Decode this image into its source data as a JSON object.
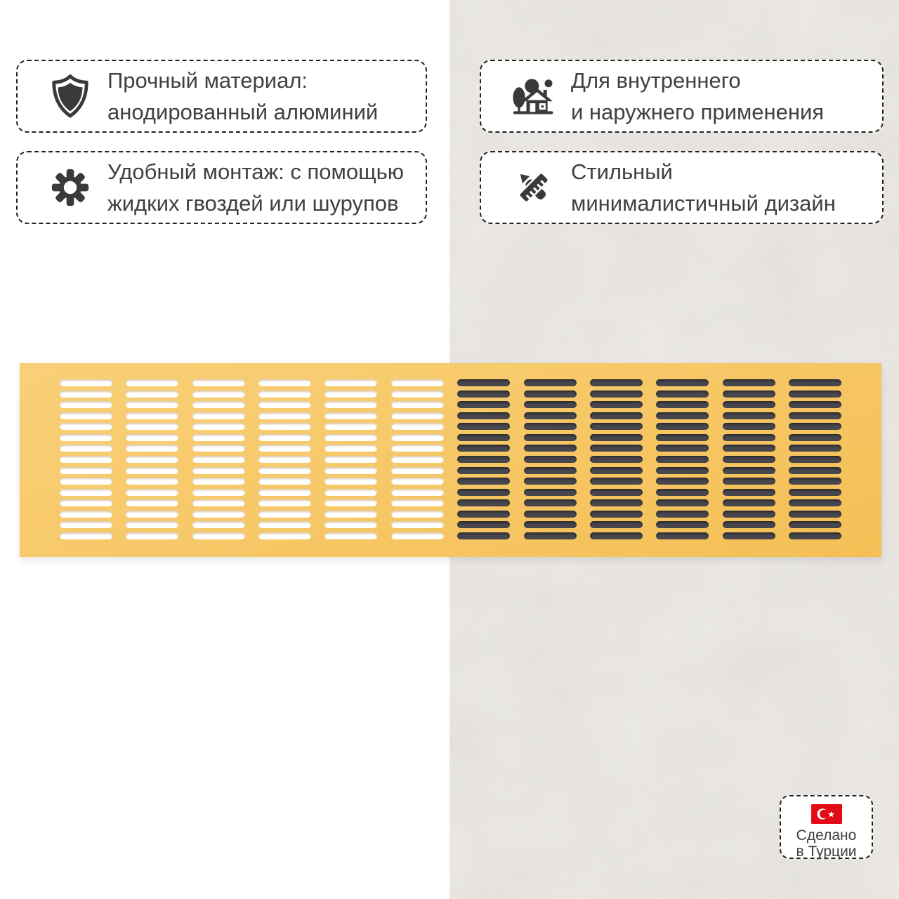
{
  "features": [
    {
      "icon": "shield-icon",
      "lines": [
        "Прочный материал:",
        "анодированный алюминий"
      ]
    },
    {
      "icon": "gear-icon",
      "lines": [
        "Удобный монтаж: с помощью",
        "жидких гвоздей или шурупов"
      ]
    },
    {
      "icon": "house-tree-icon",
      "lines": [
        "Для внутреннего",
        "и наружнего применения"
      ]
    },
    {
      "icon": "pencil-ruler-icon",
      "lines": [
        "Стильный",
        "минималистичный дизайн"
      ]
    }
  ],
  "made_in_badge": {
    "flag": "turkey-flag-icon",
    "lines": [
      "Сделано",
      "в Турции"
    ]
  },
  "grille": {
    "columns": 12,
    "rows": 15,
    "dark_from_column": 6,
    "body_gradient": [
      "#f9d078",
      "#f4bf55"
    ],
    "light_slot_color": "#ffffff",
    "dark_slot_color": "#47474d"
  },
  "colors": {
    "text": "#3f4043",
    "icon": "#3a3a3c",
    "box_border": "#222222",
    "left_background": "#ffffff",
    "wall_background": "#eae7e2",
    "flag_red": "#e30a17"
  }
}
